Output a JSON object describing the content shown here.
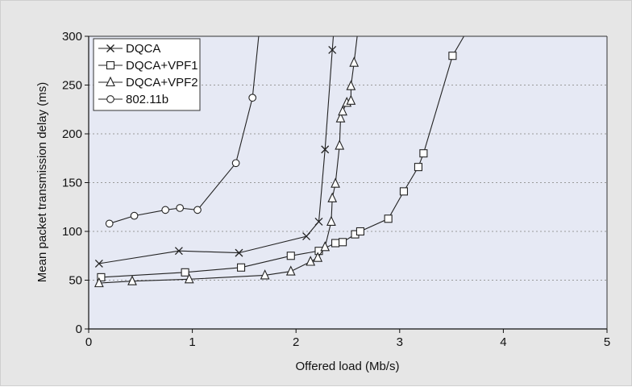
{
  "chart_data": {
    "type": "line",
    "title": "",
    "xlabel": "Offered load (Mb/s)",
    "ylabel": "Mean packet transmission delay (ms)",
    "xlim": [
      0,
      5
    ],
    "ylim": [
      0,
      300
    ],
    "xticks": [
      0,
      1,
      2,
      3,
      4,
      5
    ],
    "yticks": [
      0,
      50,
      100,
      150,
      200,
      250,
      300
    ],
    "xtick_labels": [
      "0",
      "1",
      "2",
      "3",
      "4",
      "5"
    ],
    "ytick_labels": [
      "0",
      "50",
      "100",
      "150",
      "200",
      "250",
      "300"
    ],
    "grid": "horizontal dotted",
    "legend_position": "top-left",
    "background_color": "#e6e9f4",
    "series": [
      {
        "name": "DQCA",
        "marker": "x",
        "points": [
          [
            0.1,
            67
          ],
          [
            0.87,
            80
          ],
          [
            1.45,
            78
          ],
          [
            2.1,
            95
          ],
          [
            2.22,
            110
          ],
          [
            2.28,
            184
          ],
          [
            2.35,
            286
          ]
        ],
        "continues_to": [
          2.36,
          300
        ]
      },
      {
        "name": "DQCA+VPF1",
        "marker": "square",
        "points": [
          [
            0.12,
            53
          ],
          [
            0.93,
            58
          ],
          [
            1.47,
            63
          ],
          [
            1.95,
            75
          ],
          [
            2.22,
            80
          ],
          [
            2.38,
            88
          ],
          [
            2.45,
            89
          ],
          [
            2.57,
            97
          ],
          [
            2.62,
            100
          ],
          [
            2.89,
            113
          ],
          [
            3.04,
            141
          ],
          [
            3.18,
            166
          ],
          [
            3.23,
            180
          ],
          [
            3.51,
            280
          ]
        ],
        "continues_to": [
          3.62,
          300
        ]
      },
      {
        "name": "DQCA+VPF2",
        "marker": "triangle",
        "points": [
          [
            0.1,
            47
          ],
          [
            0.42,
            49
          ],
          [
            0.97,
            51
          ],
          [
            1.7,
            55
          ],
          [
            1.95,
            59
          ],
          [
            2.14,
            69
          ],
          [
            2.21,
            73
          ],
          [
            2.28,
            84
          ],
          [
            2.34,
            110
          ],
          [
            2.35,
            134
          ],
          [
            2.38,
            149
          ],
          [
            2.42,
            188
          ],
          [
            2.43,
            216
          ],
          [
            2.45,
            223
          ],
          [
            2.49,
            232
          ],
          [
            2.53,
            234
          ],
          [
            2.53,
            249
          ],
          [
            2.56,
            273
          ]
        ],
        "continues_to": [
          2.59,
          300
        ]
      },
      {
        "name": "802.11b",
        "marker": "circle",
        "points": [
          [
            0.2,
            108
          ],
          [
            0.44,
            116
          ],
          [
            0.74,
            122
          ],
          [
            0.88,
            124
          ],
          [
            1.05,
            122
          ],
          [
            1.42,
            170
          ],
          [
            1.58,
            237
          ]
        ],
        "continues_to": [
          1.64,
          300
        ]
      }
    ]
  }
}
